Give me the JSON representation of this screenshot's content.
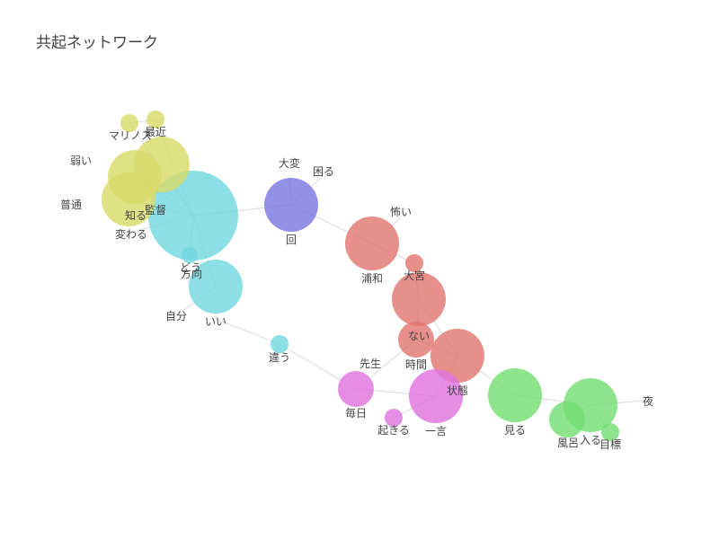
{
  "chart_data": {
    "type": "network",
    "title": "共起ネットワーク",
    "nodes": [
      {
        "id": "監督",
        "label": "監督",
        "size": 50,
        "group": "cyan"
      },
      {
        "id": "方向",
        "label": "方向",
        "size": 30,
        "group": "cyan"
      },
      {
        "id": "どう",
        "label": "どう",
        "size": 9,
        "group": "cyan"
      },
      {
        "id": "いい",
        "label": "いい",
        "size": 0,
        "group": "cyan"
      },
      {
        "id": "自分",
        "label": "自分",
        "size": 0,
        "group": "cyan"
      },
      {
        "id": "違う",
        "label": "違う",
        "size": 10,
        "group": "cyan"
      },
      {
        "id": "マリノス",
        "label": "マリノス",
        "size": 10,
        "group": "yellow"
      },
      {
        "id": "最近",
        "label": "最近",
        "size": 10,
        "group": "yellow"
      },
      {
        "id": "弱い",
        "label": "弱い",
        "size": 31,
        "group": "yellow"
      },
      {
        "id": "普通",
        "label": "普通",
        "size": 30,
        "group": "yellow"
      },
      {
        "id": "知る",
        "label": "知る",
        "size": 30,
        "group": "yellow"
      },
      {
        "id": "変わる",
        "label": "変わる",
        "size": 0,
        "group": "yellow"
      },
      {
        "id": "大変",
        "label": "大変",
        "size": 0,
        "group": "purple"
      },
      {
        "id": "困る",
        "label": "困る",
        "size": 0,
        "group": "purple"
      },
      {
        "id": "回",
        "label": "回",
        "size": 30,
        "group": "purple"
      },
      {
        "id": "浦和",
        "label": "浦和",
        "size": 30,
        "group": "red"
      },
      {
        "id": "怖い",
        "label": "怖い",
        "size": 0,
        "group": "red"
      },
      {
        "id": "大宮",
        "label": "大宮",
        "size": 10,
        "group": "red"
      },
      {
        "id": "ない",
        "label": "ない",
        "size": 30,
        "group": "red"
      },
      {
        "id": "時間",
        "label": "時間",
        "size": 20,
        "group": "red"
      },
      {
        "id": "状態",
        "label": "状態",
        "size": 30,
        "group": "red"
      },
      {
        "id": "先生",
        "label": "先生",
        "size": 0,
        "group": "magenta"
      },
      {
        "id": "毎日",
        "label": "毎日",
        "size": 20,
        "group": "magenta"
      },
      {
        "id": "起きる",
        "label": "起きる",
        "size": 10,
        "group": "magenta"
      },
      {
        "id": "一言",
        "label": "一言",
        "size": 30,
        "group": "magenta"
      },
      {
        "id": "見る",
        "label": "見る",
        "size": 30,
        "group": "green"
      },
      {
        "id": "風呂",
        "label": "風呂",
        "size": 20,
        "group": "green"
      },
      {
        "id": "入る",
        "label": "入る",
        "size": 30,
        "group": "green"
      },
      {
        "id": "目標",
        "label": "目標",
        "size": 10,
        "group": "green"
      },
      {
        "id": "夜",
        "label": "夜",
        "size": 0,
        "group": "green"
      }
    ],
    "edges": [
      [
        "マリノス",
        "最近"
      ],
      [
        "マリノス",
        "監督"
      ],
      [
        "最近",
        "監督"
      ],
      [
        "弱い",
        "監督"
      ],
      [
        "普通",
        "監督"
      ],
      [
        "知る",
        "監督"
      ],
      [
        "変わる",
        "監督"
      ],
      [
        "どう",
        "監督"
      ],
      [
        "監督",
        "回"
      ],
      [
        "大変",
        "回"
      ],
      [
        "困る",
        "回"
      ],
      [
        "回",
        "浦和"
      ],
      [
        "浦和",
        "怖い"
      ],
      [
        "浦和",
        "大宮"
      ],
      [
        "大宮",
        "ない"
      ],
      [
        "ない",
        "時間"
      ],
      [
        "時間",
        "状態"
      ],
      [
        "状態",
        "ない"
      ],
      [
        "先生",
        "時間"
      ],
      [
        "状態",
        "見る"
      ],
      [
        "見る",
        "入る"
      ],
      [
        "入る",
        "風呂"
      ],
      [
        "入る",
        "目標"
      ],
      [
        "入る",
        "夜"
      ],
      [
        "方向",
        "いい"
      ],
      [
        "方向",
        "自分"
      ],
      [
        "いい",
        "違う"
      ],
      [
        "違う",
        "毎日"
      ],
      [
        "毎日",
        "一言"
      ],
      [
        "一言",
        "起きる"
      ],
      [
        "一言",
        "状態"
      ],
      [
        "監督",
        "方向"
      ]
    ],
    "colors": {
      "cyan": "#71d8df",
      "yellow": "#d8db6a",
      "purple": "#7b77e3",
      "red": "#e07672",
      "magenta": "#df74df",
      "green": "#74de74"
    }
  }
}
